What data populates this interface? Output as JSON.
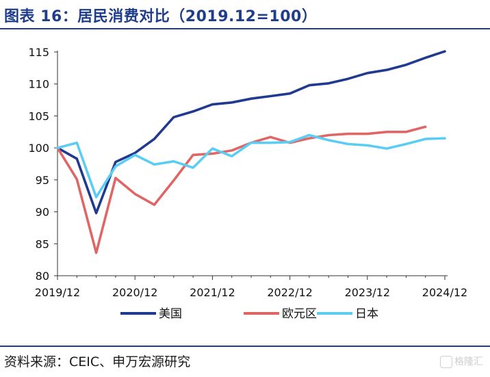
{
  "header": {
    "title": "图表 16：居民消费对比（2019.12=100）"
  },
  "footer": {
    "source": "资料来源：CEIC、申万宏源研究",
    "watermark": "格隆汇"
  },
  "colors": {
    "us": "#1f3a8f",
    "eu": "#e06666",
    "jp": "#5bcdf5",
    "title": "#1f3d8c"
  },
  "chart_data": {
    "type": "line",
    "x": [
      "2019/12",
      "2020/03",
      "2020/06",
      "2020/09",
      "2020/12",
      "2021/03",
      "2021/06",
      "2021/09",
      "2021/12",
      "2022/03",
      "2022/06",
      "2022/09",
      "2022/12",
      "2023/03",
      "2023/06",
      "2023/09",
      "2023/12",
      "2024/03",
      "2024/06",
      "2024/09",
      "2024/12"
    ],
    "xticks": [
      "2019/12",
      "2020/12",
      "2021/12",
      "2022/12",
      "2023/12",
      "2024/12"
    ],
    "ylim": [
      80,
      115
    ],
    "yticks": [
      80,
      85,
      90,
      95,
      100,
      105,
      110,
      115
    ],
    "series": [
      {
        "name": "美国",
        "color": "#1f3a8f",
        "values": [
          100.0,
          98.3,
          89.8,
          97.8,
          99.2,
          101.4,
          104.8,
          105.7,
          106.8,
          107.1,
          107.7,
          108.1,
          108.5,
          109.8,
          110.1,
          110.8,
          111.7,
          112.2,
          113.0,
          114.1,
          115.1
        ]
      },
      {
        "name": "欧元区",
        "color": "#e06666",
        "values": [
          100.0,
          95.1,
          83.6,
          95.3,
          92.8,
          91.1,
          94.9,
          98.9,
          99.1,
          99.6,
          100.8,
          101.7,
          100.8,
          101.5,
          102.0,
          102.2,
          102.2,
          102.5,
          102.5,
          103.3,
          null
        ]
      },
      {
        "name": "日本",
        "color": "#5bcdf5",
        "values": [
          100.0,
          100.8,
          92.3,
          97.1,
          98.9,
          97.4,
          97.9,
          96.9,
          99.9,
          98.7,
          100.8,
          100.8,
          100.9,
          102.0,
          101.2,
          100.6,
          100.4,
          99.9,
          100.6,
          101.4,
          101.5
        ]
      }
    ]
  }
}
